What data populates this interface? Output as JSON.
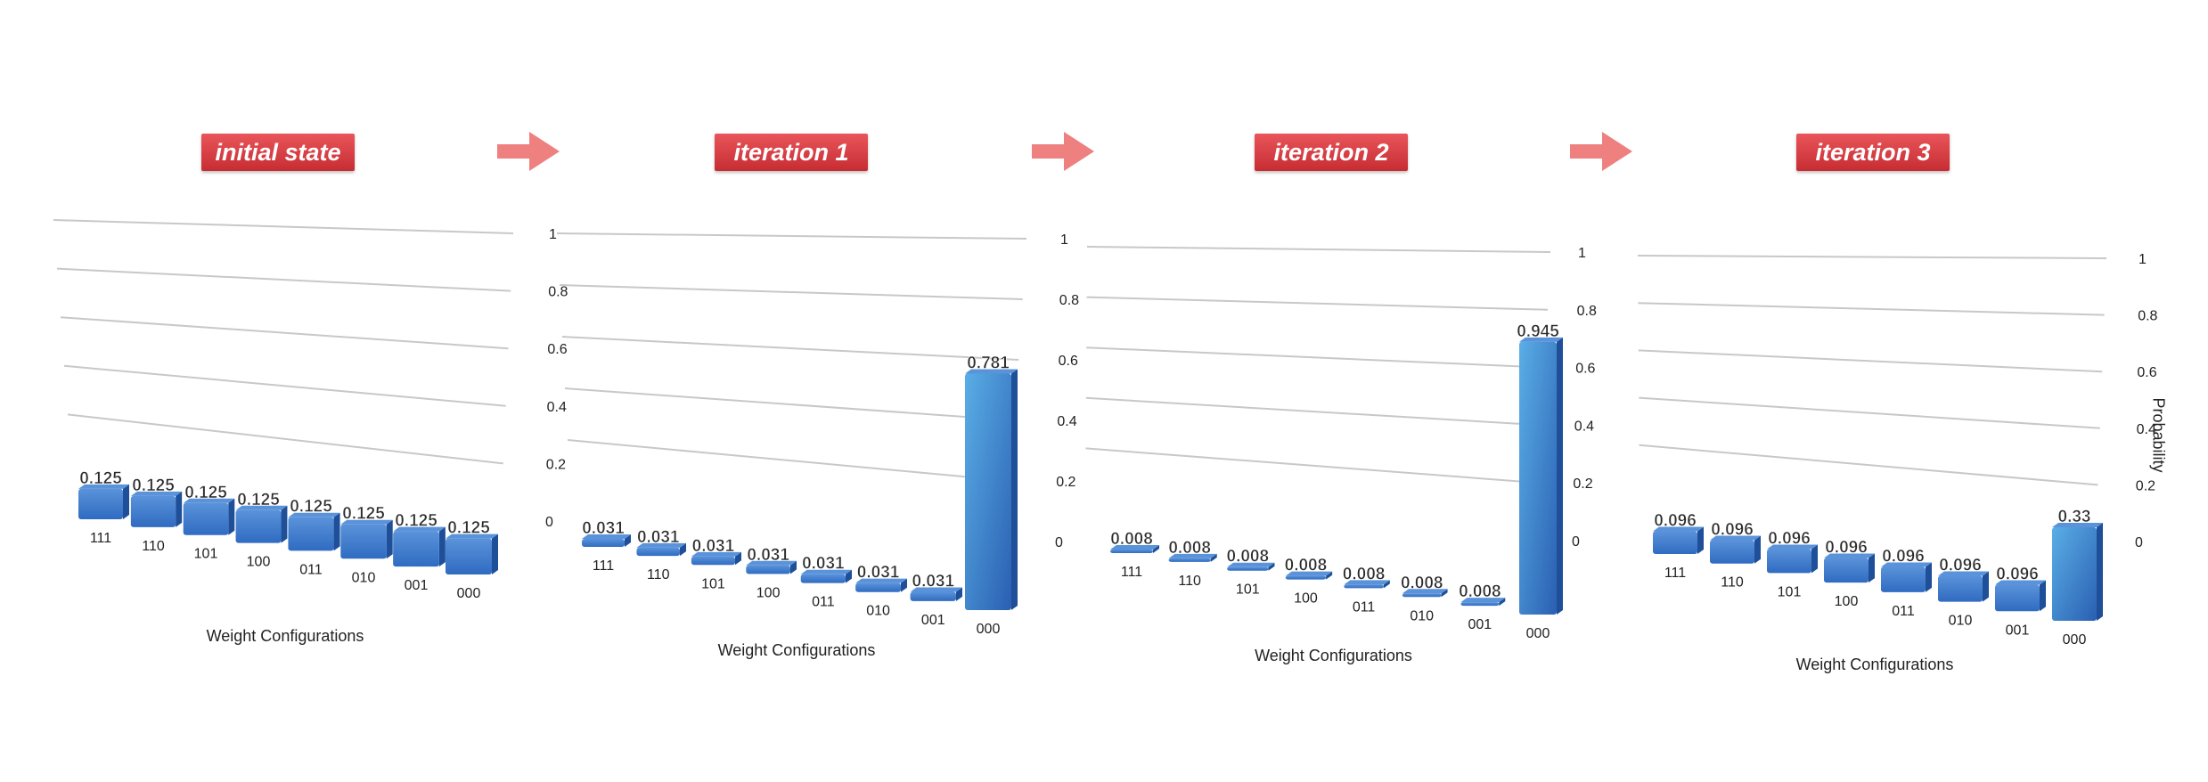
{
  "colors": {
    "banner_top": "#e9555a",
    "banner_bottom": "#c62d33",
    "arrow": "#ee8080",
    "bar_front": "#2f6bc1",
    "bar_side": "#1e4f98",
    "bar_top": "#5a93da",
    "tall_bar_front_light": "#5aaee6",
    "tall_bar_front_dark": "#2a5fb2",
    "gridline": "#c8c8c8"
  },
  "arrows": [
    "arrow-right-icon",
    "arrow-right-icon",
    "arrow-right-icon"
  ],
  "y_axis_title": "Probability",
  "chart_data": [
    {
      "type": "bar",
      "title": "initial state",
      "xlabel": "Weight Configurations",
      "ylabel": "",
      "ylim": [
        0,
        1
      ],
      "yticks": [
        "0",
        "0.2",
        "0.4",
        "0.6",
        "0.8",
        "1"
      ],
      "categories": [
        "111",
        "110",
        "101",
        "100",
        "011",
        "010",
        "001",
        "000"
      ],
      "values": [
        0.125,
        0.125,
        0.125,
        0.125,
        0.125,
        0.125,
        0.125,
        0.125
      ],
      "value_labels": [
        "0.125",
        "0.125",
        "0.125",
        "0.125",
        "0.125",
        "0.125",
        "0.125",
        "0.125"
      ]
    },
    {
      "type": "bar",
      "title": "iteration 1",
      "xlabel": "Weight Configurations",
      "ylabel": "",
      "ylim": [
        0,
        1
      ],
      "yticks": [
        "0",
        "0.2",
        "0.4",
        "0.6",
        "0.8",
        "1"
      ],
      "categories": [
        "111",
        "110",
        "101",
        "100",
        "011",
        "010",
        "001",
        "000"
      ],
      "values": [
        0.031,
        0.031,
        0.031,
        0.031,
        0.031,
        0.031,
        0.031,
        0.781
      ],
      "value_labels": [
        "0.031",
        "0.031",
        "0.031",
        "0.031",
        "0.031",
        "0.031",
        "0.031",
        "0.781"
      ]
    },
    {
      "type": "bar",
      "title": "iteration 2",
      "xlabel": "Weight Configurations",
      "ylabel": "",
      "ylim": [
        0,
        1
      ],
      "yticks": [
        "0",
        "0.2",
        "0.4",
        "0.6",
        "0.8",
        "1"
      ],
      "categories": [
        "111",
        "110",
        "101",
        "100",
        "011",
        "010",
        "001",
        "000"
      ],
      "values": [
        0.008,
        0.008,
        0.008,
        0.008,
        0.008,
        0.008,
        0.008,
        0.945
      ],
      "value_labels": [
        "0.008",
        "0.008",
        "0.008",
        "0.008",
        "0.008",
        "0.008",
        "0.008",
        "0.945"
      ]
    },
    {
      "type": "bar",
      "title": "iteration 3",
      "xlabel": "Weight Configurations",
      "ylabel": "Probability",
      "ylim": [
        0,
        1
      ],
      "yticks": [
        "0",
        "0.2",
        "0.4",
        "0.6",
        "0.8",
        "1"
      ],
      "categories": [
        "111",
        "110",
        "101",
        "100",
        "011",
        "010",
        "001",
        "000"
      ],
      "values": [
        0.096,
        0.096,
        0.096,
        0.096,
        0.096,
        0.096,
        0.096,
        0.33
      ],
      "value_labels": [
        "0.096",
        "0.096",
        "0.096",
        "0.096",
        "0.096",
        "0.096",
        "0.096",
        "0.33"
      ]
    }
  ]
}
